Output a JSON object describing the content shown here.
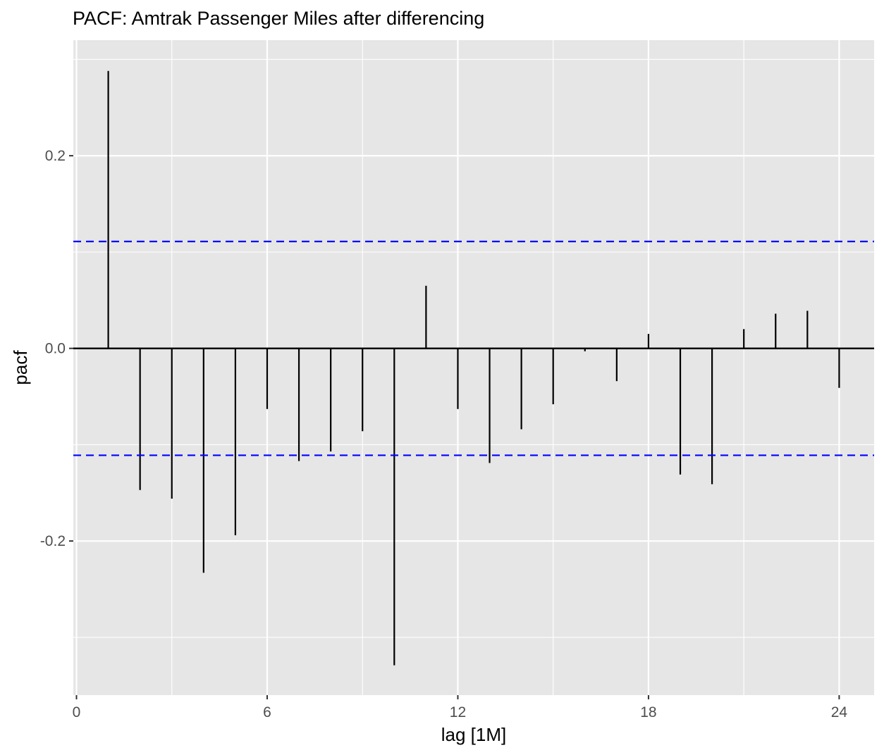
{
  "chart_data": {
    "type": "bar",
    "title": "PACF: Amtrak Passenger Miles after differencing",
    "xlabel": "lag [1M]",
    "ylabel": "pacf",
    "x": [
      1,
      2,
      3,
      4,
      5,
      6,
      7,
      8,
      9,
      10,
      11,
      12,
      13,
      14,
      15,
      16,
      17,
      18,
      19,
      20,
      21,
      22,
      23,
      24
    ],
    "values": [
      0.288,
      -0.147,
      -0.156,
      -0.233,
      -0.194,
      -0.063,
      -0.117,
      -0.107,
      -0.086,
      -0.329,
      0.065,
      -0.063,
      -0.119,
      -0.084,
      -0.058,
      -0.003,
      -0.034,
      0.015,
      -0.131,
      -0.141,
      0.02,
      0.036,
      0.039,
      -0.041
    ],
    "confidence_bound": 0.111,
    "xlim": [
      -0.1,
      25.1
    ],
    "ylim": [
      -0.36,
      0.32
    ],
    "x_ticks": [
      0,
      6,
      12,
      18,
      24
    ],
    "x_tick_labels": [
      "0",
      "6",
      "12",
      "18",
      "24"
    ],
    "y_ticks": [
      -0.2,
      0.0,
      0.2
    ],
    "y_tick_labels": [
      "-0.2",
      "0.0",
      "0.2"
    ],
    "grid": true,
    "colors": {
      "panel_background": "#e6e6e6",
      "grid": "#ffffff",
      "bars": "#000000",
      "confidence_lines": "#0000ff"
    }
  }
}
